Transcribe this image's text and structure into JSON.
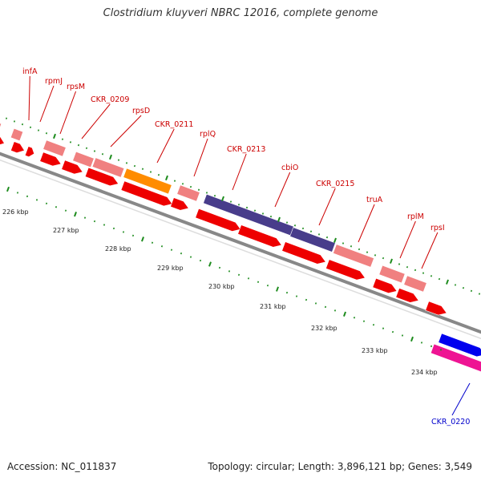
{
  "header": {
    "title": "Clostridium kluyveri NBRC 12016, complete genome"
  },
  "footer": {
    "accession_text": "Accession: NC_011837",
    "topology_text": "Topology: circular; Length: 3,896,121 bp; Genes: 3,549"
  },
  "colors": {
    "background": "#ffffff",
    "backbone": "#888888",
    "tick": "#1e8c1e",
    "gene_label": "#cc0000",
    "external_label": "#0000cc",
    "cds_red": "#ee0000",
    "rrna_pink": "#f08080",
    "orange": "#ff8c00",
    "purple": "#483d8b",
    "blue": "#0000ee",
    "magenta": "#ee1493"
  },
  "kbp_labels": [
    "226 kbp",
    "227 kbp",
    "228 kbp",
    "229 kbp",
    "230 kbp",
    "231 kbp",
    "232 kbp",
    "233 kbp",
    "234 kbp"
  ],
  "gene_labels": [
    "infA",
    "rpmJ",
    "rpsM",
    "CKR_0209",
    "rpsD",
    "CKR_0211",
    "rplQ",
    "CKR_0213",
    "cbiO",
    "CKR_0215",
    "truA",
    "rplM",
    "rpsI"
  ],
  "external_label": "CKR_0220"
}
